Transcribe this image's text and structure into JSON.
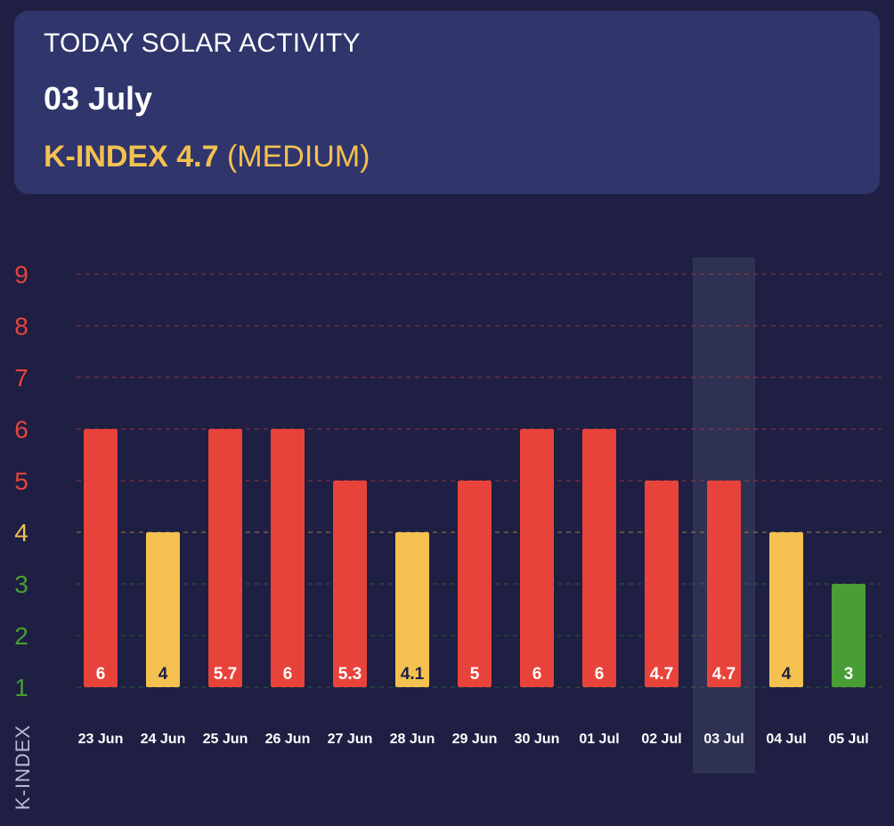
{
  "header": {
    "kicker": "TODAY SOLAR ACTIVITY",
    "date": "03 July",
    "k_index_label": "K-INDEX 4.7",
    "k_level": "(MEDIUM)"
  },
  "colors": {
    "background": "#1e1f42",
    "card": "#30356c",
    "high": "#e8433a",
    "medium": "#f4c150",
    "low": "#489e34",
    "highlight": "#2e3152"
  },
  "chart_data": {
    "type": "bar",
    "ylabel": "K-INDEX",
    "ylim": [
      1,
      9
    ],
    "yticks": [
      1,
      2,
      3,
      4,
      5,
      6,
      7,
      8,
      9
    ],
    "grid": true,
    "categories": [
      "23 Jun",
      "24 Jun",
      "25 Jun",
      "26 Jun",
      "27 Jun",
      "28 Jun",
      "29 Jun",
      "30 Jun",
      "01 Jul",
      "02 Jul",
      "03 Jul",
      "04 Jul",
      "05 Jul"
    ],
    "bar_heights": [
      6,
      4,
      6,
      6,
      5,
      4,
      5,
      6,
      6,
      5,
      5,
      4,
      3
    ],
    "value_labels": [
      "6",
      "4",
      "5.7",
      "6",
      "5.3",
      "4.1",
      "5",
      "6",
      "6",
      "4.7",
      "4.7",
      "4",
      "3"
    ],
    "highlighted_category": "03 Jul"
  }
}
